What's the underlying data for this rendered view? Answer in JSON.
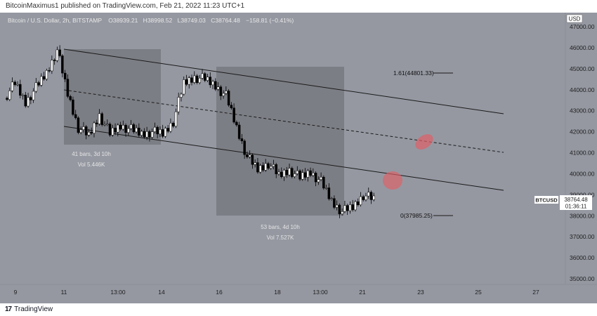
{
  "header": {
    "publish_line": "BitcoinMaximus1 published on TradingView.com, Feb 21, 2022 11:23 UTC+1"
  },
  "legend": {
    "symbol": "Bitcoin / U.S. Dollar, 2h, BITSTAMP",
    "o_label": "O",
    "o_value": "38939.21",
    "h_label": "H",
    "h_value": "38998.52",
    "l_label": "L",
    "l_value": "38749.03",
    "c_label": "C",
    "c_value": "38764.48",
    "change": "−158.81 (−0.41%)"
  },
  "currency": "USD",
  "price_axis": [
    "47000.00",
    "46000.00",
    "45000.00",
    "44000.00",
    "43000.00",
    "42000.00",
    "41000.00",
    "40000.00",
    "39000.00",
    "38000.00",
    "37000.00",
    "36000.00",
    "35000.00"
  ],
  "time_axis": [
    "9",
    "11",
    "13:00",
    "14",
    "16",
    "18",
    "13:00",
    "21",
    "23",
    "25",
    "27"
  ],
  "ranges": [
    {
      "bars": "41 bars, 3d 10h",
      "vol": "Vol 5.446K"
    },
    {
      "bars": "53 bars, 4d 10h",
      "vol": "Vol 7.527K"
    }
  ],
  "fib": {
    "upper": "1.61(44801.33)",
    "lower": "0(37985.25)"
  },
  "ticker": {
    "symbol": "BTCUSD",
    "price": "38764.48",
    "countdown": "01:36:11"
  },
  "footer": {
    "brand": "TradingView",
    "logo_mark": "17"
  },
  "colors": {
    "background": "#9598a1",
    "range_box": "#7c7e85",
    "candle_up": "#ffffff",
    "candle_down": "#000000",
    "highlight": "#e06066"
  },
  "chart_data": {
    "type": "candlestick",
    "title": "Bitcoin / U.S. Dollar, 2h, BITSTAMP",
    "ylim": [
      34600,
      47500
    ],
    "approx_closes": [
      43600,
      44300,
      43400,
      44100,
      44800,
      45900,
      43800,
      42200,
      41800,
      42800,
      41900,
      42300,
      42100,
      41900,
      42000,
      41900,
      42500,
      44300,
      44600,
      44500,
      44200,
      43700,
      42200,
      40800,
      40200,
      40500,
      39900,
      40200,
      39800,
      40100,
      39600,
      38700,
      38200,
      38400,
      39000,
      38764
    ]
  }
}
